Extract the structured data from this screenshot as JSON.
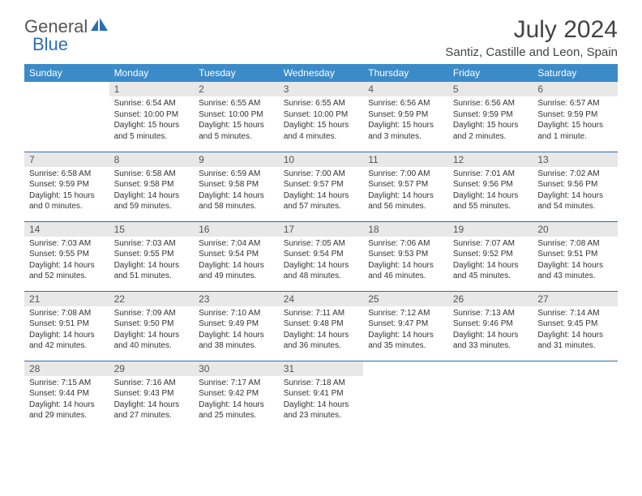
{
  "logo": {
    "part1": "General",
    "part2": "Blue"
  },
  "title": "July 2024",
  "location": "Santiz, Castille and Leon, Spain",
  "colors": {
    "header_bg": "#3b8bc8",
    "header_text": "#ffffff",
    "daynum_bg": "#e8e8e8",
    "row_divider": "#2a6fb5",
    "logo_gray": "#555555",
    "logo_blue": "#2a6fb5",
    "body_text": "#333333",
    "title_text": "#444444"
  },
  "weekdays": [
    "Sunday",
    "Monday",
    "Tuesday",
    "Wednesday",
    "Thursday",
    "Friday",
    "Saturday"
  ],
  "first_weekday_index": 1,
  "days": [
    {
      "n": 1,
      "sunrise": "6:54 AM",
      "sunset": "10:00 PM",
      "daylight": "15 hours and 5 minutes."
    },
    {
      "n": 2,
      "sunrise": "6:55 AM",
      "sunset": "10:00 PM",
      "daylight": "15 hours and 5 minutes."
    },
    {
      "n": 3,
      "sunrise": "6:55 AM",
      "sunset": "10:00 PM",
      "daylight": "15 hours and 4 minutes."
    },
    {
      "n": 4,
      "sunrise": "6:56 AM",
      "sunset": "9:59 PM",
      "daylight": "15 hours and 3 minutes."
    },
    {
      "n": 5,
      "sunrise": "6:56 AM",
      "sunset": "9:59 PM",
      "daylight": "15 hours and 2 minutes."
    },
    {
      "n": 6,
      "sunrise": "6:57 AM",
      "sunset": "9:59 PM",
      "daylight": "15 hours and 1 minute."
    },
    {
      "n": 7,
      "sunrise": "6:58 AM",
      "sunset": "9:59 PM",
      "daylight": "15 hours and 0 minutes."
    },
    {
      "n": 8,
      "sunrise": "6:58 AM",
      "sunset": "9:58 PM",
      "daylight": "14 hours and 59 minutes."
    },
    {
      "n": 9,
      "sunrise": "6:59 AM",
      "sunset": "9:58 PM",
      "daylight": "14 hours and 58 minutes."
    },
    {
      "n": 10,
      "sunrise": "7:00 AM",
      "sunset": "9:57 PM",
      "daylight": "14 hours and 57 minutes."
    },
    {
      "n": 11,
      "sunrise": "7:00 AM",
      "sunset": "9:57 PM",
      "daylight": "14 hours and 56 minutes."
    },
    {
      "n": 12,
      "sunrise": "7:01 AM",
      "sunset": "9:56 PM",
      "daylight": "14 hours and 55 minutes."
    },
    {
      "n": 13,
      "sunrise": "7:02 AM",
      "sunset": "9:56 PM",
      "daylight": "14 hours and 54 minutes."
    },
    {
      "n": 14,
      "sunrise": "7:03 AM",
      "sunset": "9:55 PM",
      "daylight": "14 hours and 52 minutes."
    },
    {
      "n": 15,
      "sunrise": "7:03 AM",
      "sunset": "9:55 PM",
      "daylight": "14 hours and 51 minutes."
    },
    {
      "n": 16,
      "sunrise": "7:04 AM",
      "sunset": "9:54 PM",
      "daylight": "14 hours and 49 minutes."
    },
    {
      "n": 17,
      "sunrise": "7:05 AM",
      "sunset": "9:54 PM",
      "daylight": "14 hours and 48 minutes."
    },
    {
      "n": 18,
      "sunrise": "7:06 AM",
      "sunset": "9:53 PM",
      "daylight": "14 hours and 46 minutes."
    },
    {
      "n": 19,
      "sunrise": "7:07 AM",
      "sunset": "9:52 PM",
      "daylight": "14 hours and 45 minutes."
    },
    {
      "n": 20,
      "sunrise": "7:08 AM",
      "sunset": "9:51 PM",
      "daylight": "14 hours and 43 minutes."
    },
    {
      "n": 21,
      "sunrise": "7:08 AM",
      "sunset": "9:51 PM",
      "daylight": "14 hours and 42 minutes."
    },
    {
      "n": 22,
      "sunrise": "7:09 AM",
      "sunset": "9:50 PM",
      "daylight": "14 hours and 40 minutes."
    },
    {
      "n": 23,
      "sunrise": "7:10 AM",
      "sunset": "9:49 PM",
      "daylight": "14 hours and 38 minutes."
    },
    {
      "n": 24,
      "sunrise": "7:11 AM",
      "sunset": "9:48 PM",
      "daylight": "14 hours and 36 minutes."
    },
    {
      "n": 25,
      "sunrise": "7:12 AM",
      "sunset": "9:47 PM",
      "daylight": "14 hours and 35 minutes."
    },
    {
      "n": 26,
      "sunrise": "7:13 AM",
      "sunset": "9:46 PM",
      "daylight": "14 hours and 33 minutes."
    },
    {
      "n": 27,
      "sunrise": "7:14 AM",
      "sunset": "9:45 PM",
      "daylight": "14 hours and 31 minutes."
    },
    {
      "n": 28,
      "sunrise": "7:15 AM",
      "sunset": "9:44 PM",
      "daylight": "14 hours and 29 minutes."
    },
    {
      "n": 29,
      "sunrise": "7:16 AM",
      "sunset": "9:43 PM",
      "daylight": "14 hours and 27 minutes."
    },
    {
      "n": 30,
      "sunrise": "7:17 AM",
      "sunset": "9:42 PM",
      "daylight": "14 hours and 25 minutes."
    },
    {
      "n": 31,
      "sunrise": "7:18 AM",
      "sunset": "9:41 PM",
      "daylight": "14 hours and 23 minutes."
    }
  ],
  "labels": {
    "sunrise": "Sunrise:",
    "sunset": "Sunset:",
    "daylight": "Daylight:"
  }
}
